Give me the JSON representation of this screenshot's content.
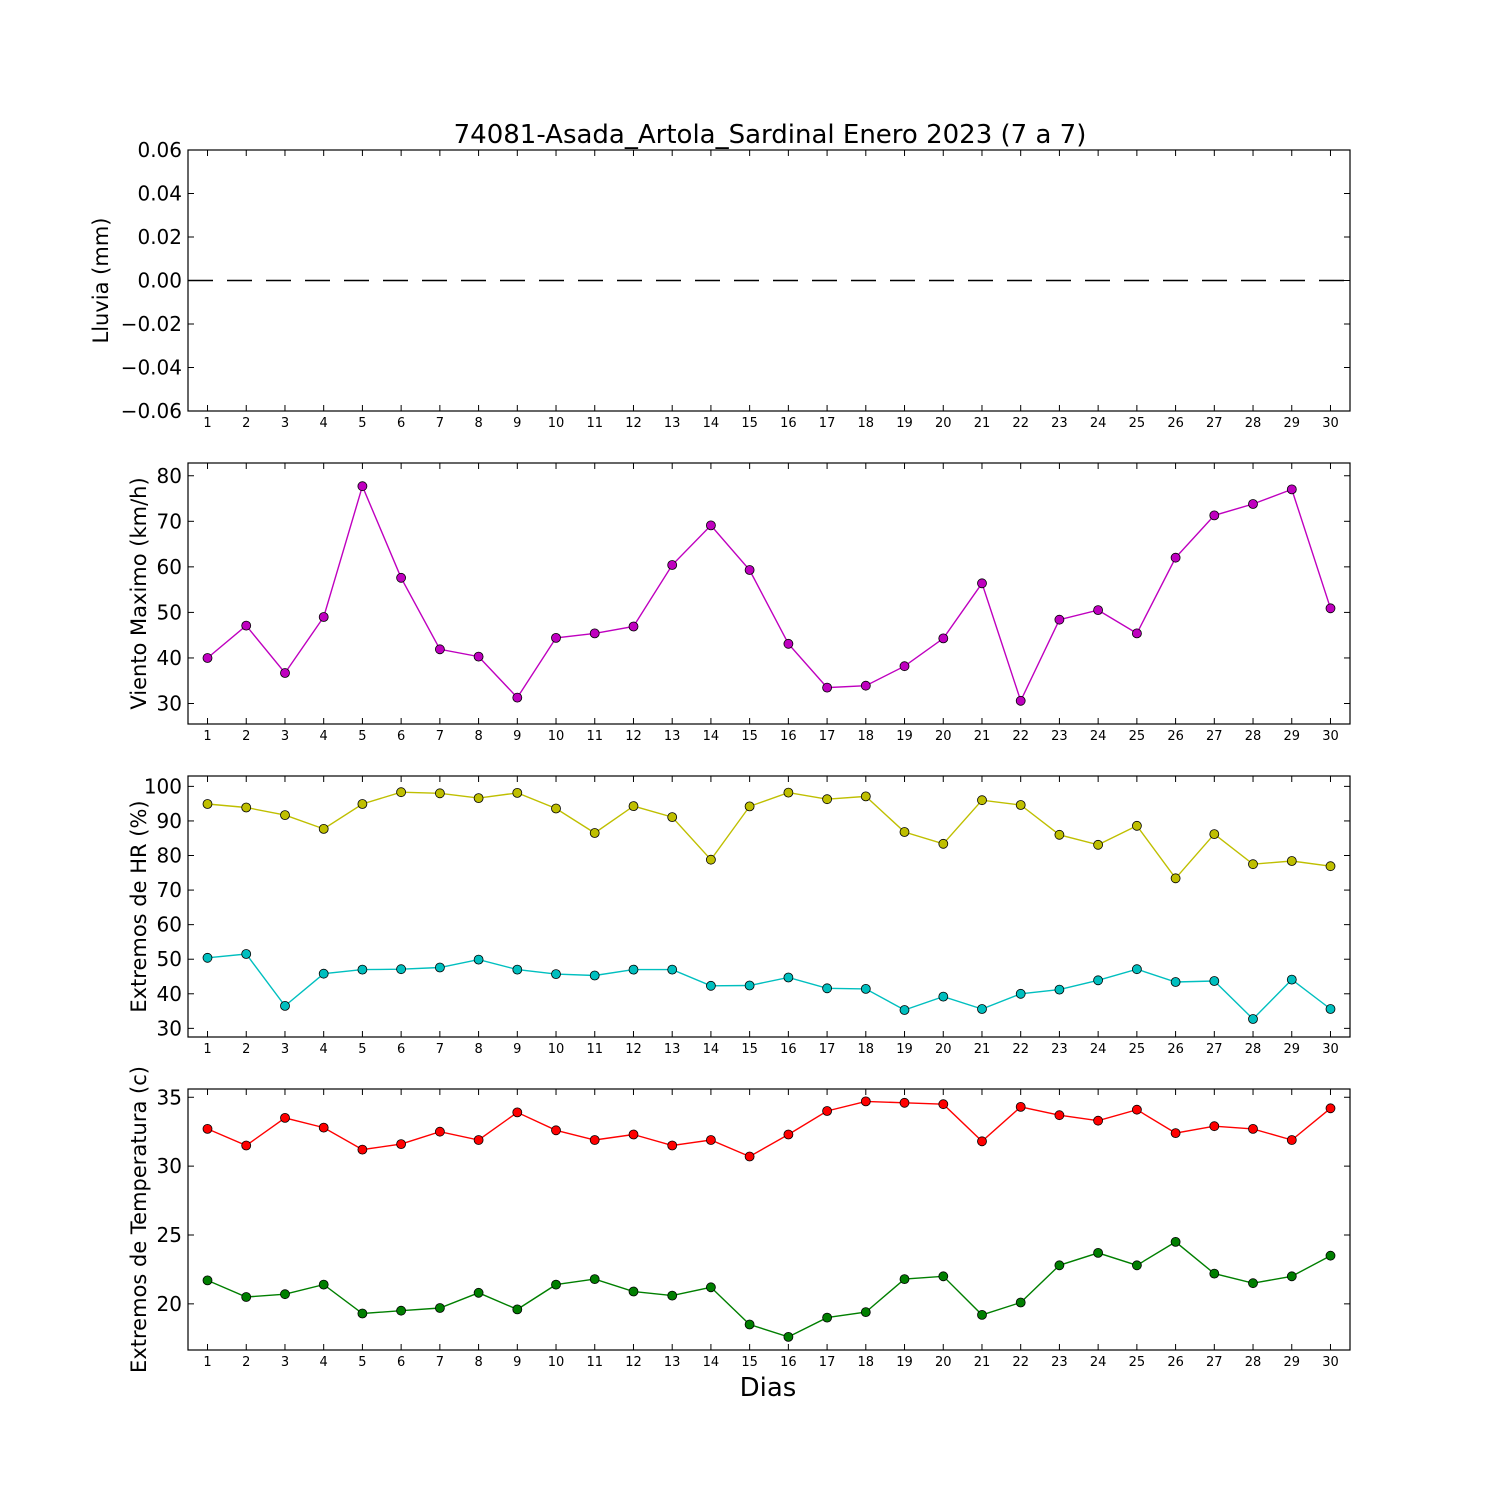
{
  "title": "74081-Asada_Artola_Sardinal Enero 2023  (7 a 7)",
  "xlabel": "Dias",
  "days": [
    1,
    2,
    3,
    4,
    5,
    6,
    7,
    8,
    9,
    10,
    11,
    12,
    13,
    14,
    15,
    16,
    17,
    18,
    19,
    20,
    21,
    22,
    23,
    24,
    25,
    26,
    27,
    28,
    29,
    30
  ],
  "chart_data": [
    {
      "type": "line",
      "ylabel": "Lluvia (mm)",
      "ylim": [
        -0.06,
        0.06
      ],
      "yticks": [
        -0.06,
        -0.04,
        -0.02,
        0.0,
        0.02,
        0.04,
        0.06
      ],
      "ytick_labels": [
        "−0.06",
        "−0.04",
        "−0.02",
        "0.00",
        "0.02",
        "0.04",
        "0.06"
      ],
      "series": [
        {
          "color": "#000000",
          "style": "dashed",
          "marker": false,
          "values": [
            0,
            0,
            0,
            0,
            0,
            0,
            0,
            0,
            0,
            0,
            0,
            0,
            0,
            0,
            0,
            0,
            0,
            0,
            0,
            0,
            0,
            0,
            0,
            0,
            0,
            0,
            0,
            0,
            0,
            0
          ]
        }
      ]
    },
    {
      "type": "line",
      "ylabel": "Viento Maximo (km/h)",
      "ylim": [
        25.5,
        82.8
      ],
      "yticks": [
        30,
        40,
        50,
        60,
        70,
        80
      ],
      "ytick_labels": [
        "30",
        "40",
        "50",
        "60",
        "70",
        "80"
      ],
      "series": [
        {
          "color": "#bf00bf",
          "style": "solid",
          "marker": true,
          "values": [
            40,
            47.1,
            36.7,
            49,
            77.7,
            57.6,
            41.9,
            40.3,
            31.3,
            44.4,
            45.4,
            46.9,
            60.4,
            69.1,
            59.3,
            43.1,
            33.5,
            33.9,
            38.2,
            44.3,
            56.4,
            30.6,
            48.4,
            50.5,
            45.4,
            62.0,
            71.3,
            73.8,
            77.0,
            50.9
          ]
        }
      ]
    },
    {
      "type": "line",
      "ylabel": "Extremos de HR (%)",
      "ylim": [
        27.5,
        103
      ],
      "yticks": [
        30,
        40,
        50,
        60,
        70,
        80,
        90,
        100
      ],
      "ytick_labels": [
        "30",
        "40",
        "50",
        "60",
        "70",
        "80",
        "90",
        "100"
      ],
      "series": [
        {
          "color": "#bfbf00",
          "style": "solid",
          "marker": true,
          "values": [
            94.9,
            93.9,
            91.7,
            87.7,
            94.9,
            98.3,
            98.0,
            96.6,
            98.1,
            93.6,
            86.5,
            94.3,
            91.1,
            78.8,
            94.2,
            98.2,
            96.3,
            97.1,
            86.8,
            83.4,
            96.0,
            94.6,
            86.0,
            83.1,
            88.6,
            73.4,
            86.2,
            77.5,
            78.4,
            76.9
          ]
        },
        {
          "color": "#00bfbf",
          "style": "solid",
          "marker": true,
          "values": [
            50.4,
            51.5,
            36.5,
            45.8,
            47.0,
            47.1,
            47.6,
            49.9,
            47.0,
            45.7,
            45.3,
            47.0,
            47.0,
            42.3,
            42.4,
            44.7,
            41.6,
            41.4,
            35.3,
            39.2,
            35.6,
            40.0,
            41.2,
            43.9,
            47.1,
            43.4,
            43.7,
            32.7,
            44.1,
            35.6
          ]
        }
      ]
    },
    {
      "type": "line",
      "ylabel": "Extremos de Temperatura (c)",
      "ylim": [
        16.65,
        35.6
      ],
      "yticks": [
        20,
        25,
        30,
        35
      ],
      "ytick_labels": [
        "20",
        "25",
        "30",
        "35"
      ],
      "series": [
        {
          "color": "#ff0000",
          "style": "solid",
          "marker": true,
          "values": [
            32.7,
            31.5,
            33.5,
            32.8,
            31.2,
            31.6,
            32.5,
            31.9,
            33.9,
            32.6,
            31.9,
            32.3,
            31.5,
            31.9,
            30.7,
            32.3,
            34.0,
            34.7,
            34.6,
            34.5,
            31.8,
            34.3,
            33.7,
            33.3,
            34.1,
            32.4,
            32.9,
            32.7,
            31.9,
            34.2
          ]
        },
        {
          "color": "#007f00",
          "style": "solid",
          "marker": true,
          "values": [
            21.7,
            20.5,
            20.7,
            21.4,
            19.3,
            19.5,
            19.7,
            20.8,
            19.6,
            21.4,
            21.8,
            20.9,
            20.6,
            21.2,
            18.5,
            17.6,
            19.0,
            19.4,
            21.8,
            22.0,
            19.2,
            20.1,
            22.8,
            23.7,
            22.8,
            24.5,
            22.2,
            21.5,
            22.0,
            23.5
          ]
        }
      ]
    }
  ]
}
